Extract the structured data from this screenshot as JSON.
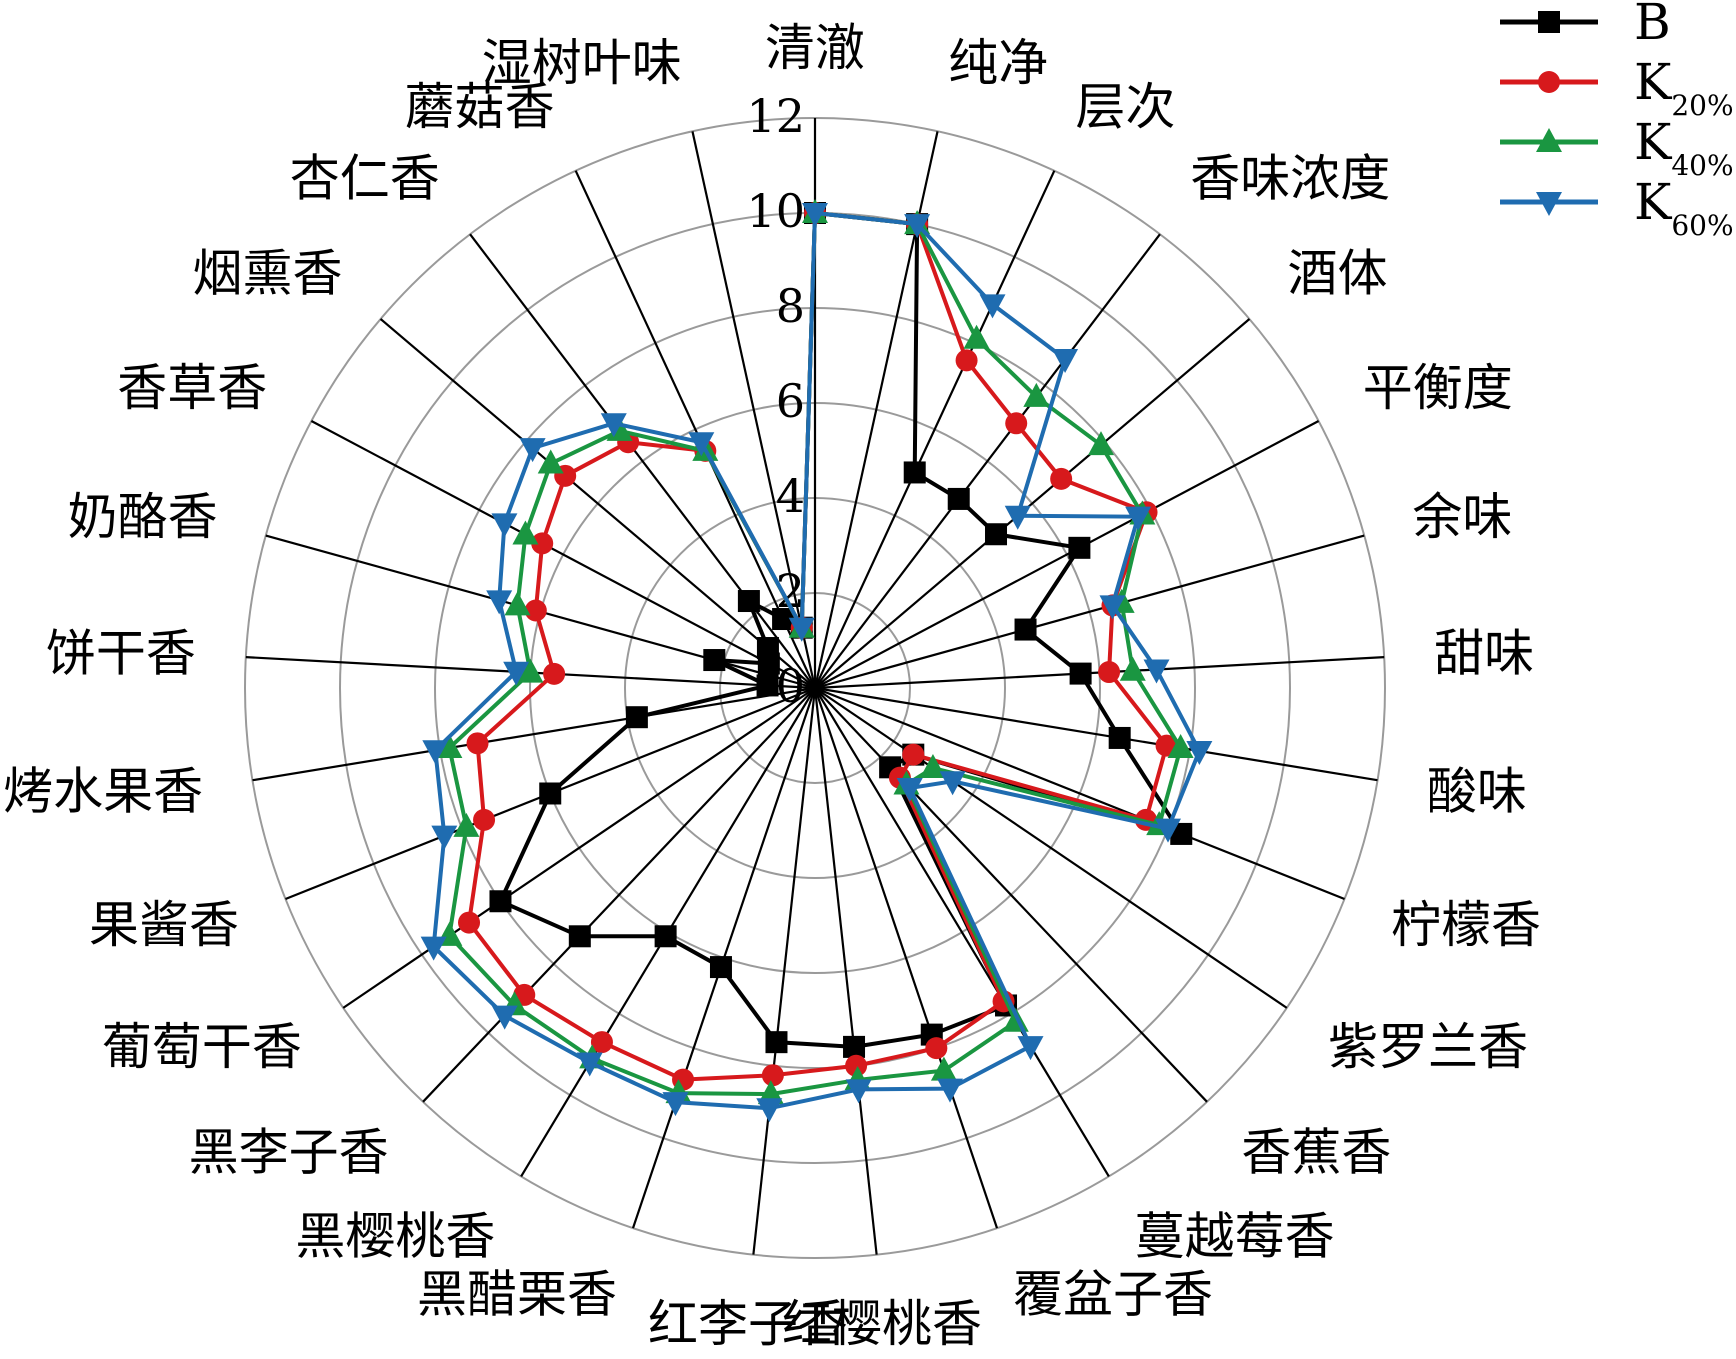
{
  "chart_data": {
    "type": "radar",
    "title": "",
    "rlim": [
      0,
      12
    ],
    "r_ticks": [
      "0",
      "2",
      "4",
      "6",
      "8",
      "10",
      "12"
    ],
    "grid": true,
    "legend_position": "top-right",
    "categories": [
      "清澈",
      "纯净",
      "层次",
      "香味浓度",
      "酒体",
      "平衡度",
      "余味",
      "甜味",
      "酸味",
      "柠檬香",
      "紫罗兰香",
      "香蕉香",
      "蔓越莓香",
      "覆盆子香",
      "红樱桃香",
      "红李子香",
      "黑醋栗香",
      "黑樱桃香",
      "黑李子香",
      "葡萄干香",
      "果酱香",
      "烤水果香",
      "饼干香",
      "奶酪香",
      "香草香",
      "烟熏香",
      "杏仁香",
      "蘑菇香",
      "湿树叶味"
    ],
    "series": [
      {
        "name": "B",
        "color": "#000000",
        "marker": "square",
        "values": [
          10,
          10,
          5,
          5,
          5,
          6.3,
          4.6,
          5.6,
          6.5,
          8.3,
          2.5,
          2.3,
          7.8,
          7.7,
          7.6,
          7.5,
          6.2,
          6.1,
          7.2,
          8.0,
          6.0,
          3.8,
          1.0,
          2.2,
          1.1,
          1.3,
          2.3,
          1.6,
          1.3
        ]
      },
      {
        "name": "K20%",
        "color": "#d7191c",
        "marker": "circle",
        "values": [
          10,
          10,
          7.6,
          7.0,
          6.8,
          7.9,
          6.5,
          6.2,
          7.5,
          7.5,
          2.5,
          2.6,
          7.7,
          8.0,
          8.0,
          8.2,
          8.7,
          8.7,
          8.9,
          8.8,
          7.5,
          7.2,
          5.5,
          6.1,
          6.5,
          6.9,
          6.5,
          5.5,
          1.3
        ]
      },
      {
        "name": "K40%",
        "color": "#1a9641",
        "marker": "triangle-up",
        "values": [
          10,
          10,
          8.1,
          7.7,
          7.9,
          7.8,
          6.7,
          6.7,
          7.8,
          7.8,
          3.0,
          2.8,
          8.2,
          8.5,
          8.3,
          8.6,
          9.0,
          9.1,
          9.2,
          9.3,
          7.9,
          7.8,
          6.0,
          6.5,
          6.9,
          7.3,
          6.8,
          5.5,
          1.3
        ]
      },
      {
        "name": "K60%",
        "color": "#1f6cb0",
        "marker": "triangle-down",
        "values": [
          10,
          10,
          8.9,
          8.7,
          5.6,
          7.7,
          6.5,
          7.2,
          8.2,
          8.0,
          3.5,
          2.9,
          8.8,
          8.9,
          8.5,
          8.9,
          9.2,
          9.2,
          9.5,
          9.7,
          8.4,
          8.1,
          6.3,
          6.9,
          7.4,
          7.8,
          7.0,
          5.7,
          1.3
        ]
      }
    ],
    "legend": [
      {
        "main": "B",
        "sub": ""
      },
      {
        "main": "K",
        "sub": "20%"
      },
      {
        "main": "K",
        "sub": "40%"
      },
      {
        "main": "K",
        "sub": "60%"
      }
    ]
  }
}
